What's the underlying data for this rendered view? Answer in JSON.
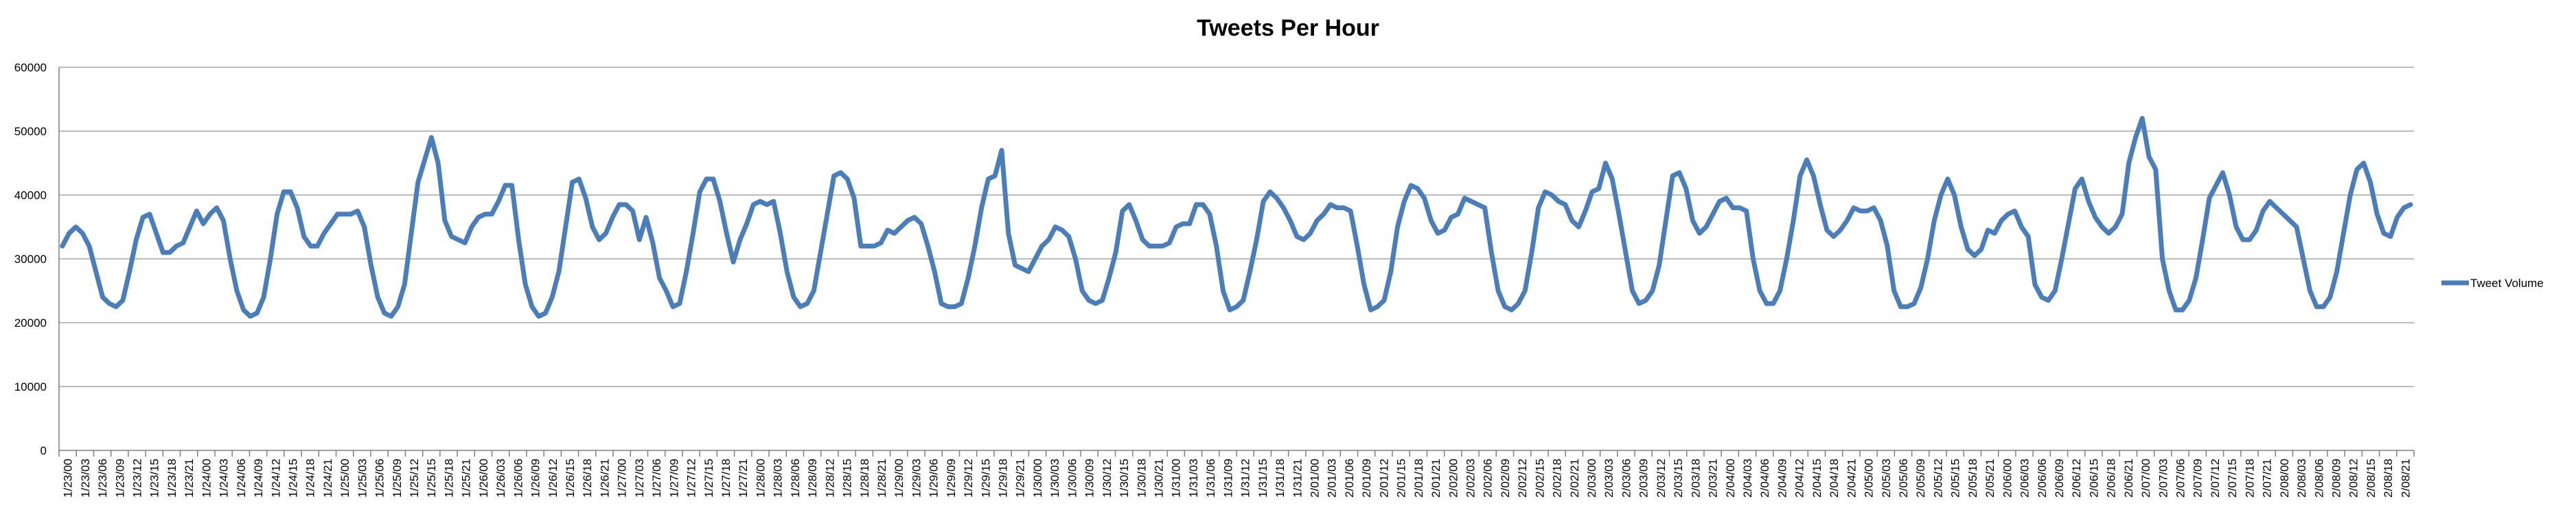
{
  "chart_data": {
    "type": "line",
    "title": "Tweets Per Hour",
    "xlabel": "",
    "ylabel": "",
    "ylim": [
      0,
      60000
    ],
    "yticks": [
      0,
      10000,
      20000,
      30000,
      40000,
      50000,
      60000
    ],
    "grid": true,
    "legend_position": "right",
    "line_color": "#4a7ebb",
    "series": [
      {
        "name": "Tweet Volume",
        "values": [
          32000,
          34000,
          35000,
          34000,
          32000,
          28000,
          24000,
          23000,
          22500,
          23500,
          28000,
          33000,
          36500,
          37000,
          34000,
          31000,
          31000,
          32000,
          32500,
          35000,
          37500,
          35500,
          37000,
          38000,
          36000,
          30000,
          25000,
          22000,
          21000,
          21500,
          24000,
          30000,
          37000,
          40500,
          40500,
          38000,
          33500,
          32000,
          32000,
          34000,
          35500,
          37000,
          37000,
          37000,
          37500,
          35000,
          29000,
          24000,
          21500,
          21000,
          22500,
          26000,
          34000,
          42000,
          45500,
          49000,
          45000,
          36000,
          33500,
          33000,
          32500,
          35000,
          36500,
          37000,
          37000,
          39000,
          41500,
          41500,
          33000,
          26000,
          22500,
          21000,
          21500,
          24000,
          28000,
          35000,
          42000,
          42500,
          39500,
          35000,
          33000,
          34000,
          36500,
          38500,
          38500,
          37500,
          33000,
          36500,
          32500,
          27000,
          25000,
          22500,
          23000,
          28000,
          34000,
          40500,
          42500,
          42500,
          39000,
          34000,
          29500,
          33000,
          35500,
          38500,
          39000,
          38500,
          39000,
          34000,
          28000,
          24000,
          22500,
          23000,
          25000,
          31000,
          37000,
          43000,
          43500,
          42500,
          39500,
          32000,
          32000,
          32000,
          32500,
          34500,
          34000,
          35000,
          36000,
          36500,
          35500,
          32000,
          28000,
          23000,
          22500,
          22500,
          23000,
          27000,
          32000,
          38000,
          42500,
          43000,
          47000,
          34000,
          29000,
          28500,
          28000,
          30000,
          32000,
          33000,
          35000,
          34500,
          33500,
          30000,
          25000,
          23500,
          23000,
          23500,
          27000,
          31000,
          37500,
          38500,
          36000,
          33000,
          32000,
          32000,
          32000,
          32500,
          35000,
          35500,
          35500,
          38500,
          38500,
          37000,
          32000,
          25000,
          22000,
          22500,
          23500,
          28000,
          33000,
          39000,
          40500,
          39500,
          38000,
          36000,
          33500,
          33000,
          34000,
          36000,
          37000,
          38500,
          38000,
          38000,
          37500,
          32000,
          26000,
          22000,
          22500,
          23500,
          28000,
          35000,
          39000,
          41500,
          41000,
          39500,
          36000,
          34000,
          34500,
          36500,
          37000,
          39500,
          39000,
          38500,
          38000,
          31000,
          25000,
          22500,
          22000,
          23000,
          25000,
          31000,
          38000,
          40500,
          40000,
          39000,
          38500,
          36000,
          35000,
          37500,
          40500,
          41000,
          45000,
          42500,
          37000,
          31000,
          25000,
          23000,
          23500,
          25000,
          29000,
          36000,
          43000,
          43500,
          41000,
          36000,
          34000,
          35000,
          37000,
          39000,
          39500,
          38000,
          38000,
          37500,
          30000,
          25000,
          23000,
          23000,
          25000,
          30000,
          36000,
          43000,
          45500,
          43000,
          38500,
          34500,
          33500,
          34500,
          36000,
          38000,
          37500,
          37500,
          38000,
          36000,
          32000,
          25000,
          22500,
          22500,
          23000,
          25500,
          30000,
          36000,
          40000,
          42500,
          40000,
          35000,
          31500,
          30500,
          31500,
          34500,
          34000,
          36000,
          37000,
          37500,
          35000,
          33500,
          26000,
          24000,
          23500,
          25000,
          30000,
          35500,
          41000,
          42500,
          39000,
          36500,
          35000,
          34000,
          35000,
          37000,
          45000,
          49000,
          52000,
          46000,
          44000,
          30000,
          25000,
          22000,
          22000,
          23500,
          27000,
          33000,
          39500,
          41500,
          43500,
          40000,
          35000,
          33000,
          33000,
          34500,
          37500,
          39000,
          38000,
          37000,
          36000,
          35000,
          30000,
          25000,
          22500,
          22500,
          24000,
          28000,
          34000,
          40000,
          44000,
          45000,
          42000,
          37000,
          34000,
          33500,
          36500,
          38000,
          38500
        ]
      }
    ],
    "x_ticks": [
      "1/23/00",
      "1/23/03",
      "1/23/06",
      "1/23/09",
      "1/23/12",
      "1/23/15",
      "1/23/18",
      "1/23/21",
      "1/24/00",
      "1/24/03",
      "1/24/06",
      "1/24/09",
      "1/24/12",
      "1/24/15",
      "1/24/18",
      "1/24/21",
      "1/25/00",
      "1/25/03",
      "1/25/06",
      "1/25/09",
      "1/25/12",
      "1/25/15",
      "1/25/18",
      "1/25/21",
      "1/26/00",
      "1/26/03",
      "1/26/06",
      "1/26/09",
      "1/26/12",
      "1/26/15",
      "1/26/18",
      "1/26/21",
      "1/27/00",
      "1/27/03",
      "1/27/06",
      "1/27/09",
      "1/27/12",
      "1/27/15",
      "1/27/18",
      "1/27/21",
      "1/28/00",
      "1/28/03",
      "1/28/06",
      "1/28/09",
      "1/28/12",
      "1/28/15",
      "1/28/18",
      "1/28/21",
      "1/29/00",
      "1/29/03",
      "1/29/06",
      "1/29/09",
      "1/29/12",
      "1/29/15",
      "1/29/18",
      "1/29/21",
      "1/30/00",
      "1/30/03",
      "1/30/06",
      "1/30/09",
      "1/30/12",
      "1/30/15",
      "1/30/18",
      "1/30/21",
      "1/31/00",
      "1/31/03",
      "1/31/06",
      "1/31/09",
      "1/31/12",
      "1/31/15",
      "1/31/18",
      "1/31/21",
      "2/01/00",
      "2/01/03",
      "2/01/06",
      "2/01/09",
      "2/01/12",
      "2/01/15",
      "2/01/18",
      "2/01/21",
      "2/02/00",
      "2/02/03",
      "2/02/06",
      "2/02/09",
      "2/02/12",
      "2/02/15",
      "2/02/18",
      "2/02/21",
      "2/03/00",
      "2/03/03",
      "2/03/06",
      "2/03/09",
      "2/03/12",
      "2/03/15",
      "2/03/18",
      "2/03/21",
      "2/04/00",
      "2/04/03",
      "2/04/06",
      "2/04/09",
      "2/04/12",
      "2/04/15",
      "2/04/18",
      "2/04/21",
      "2/05/00",
      "2/05/03",
      "2/05/06",
      "2/05/09",
      "2/05/12",
      "2/05/15",
      "2/05/18",
      "2/05/21",
      "2/06/00",
      "2/06/03",
      "2/06/06",
      "2/06/09",
      "2/06/12",
      "2/06/15",
      "2/06/18",
      "2/06/21",
      "2/07/00",
      "2/07/03",
      "2/07/06",
      "2/07/09",
      "2/07/12",
      "2/07/15",
      "2/07/18",
      "2/07/21",
      "2/08/00",
      "2/08/03",
      "2/08/06",
      "2/08/09",
      "2/08/12",
      "2/08/15",
      "2/08/18",
      "2/08/21"
    ]
  }
}
